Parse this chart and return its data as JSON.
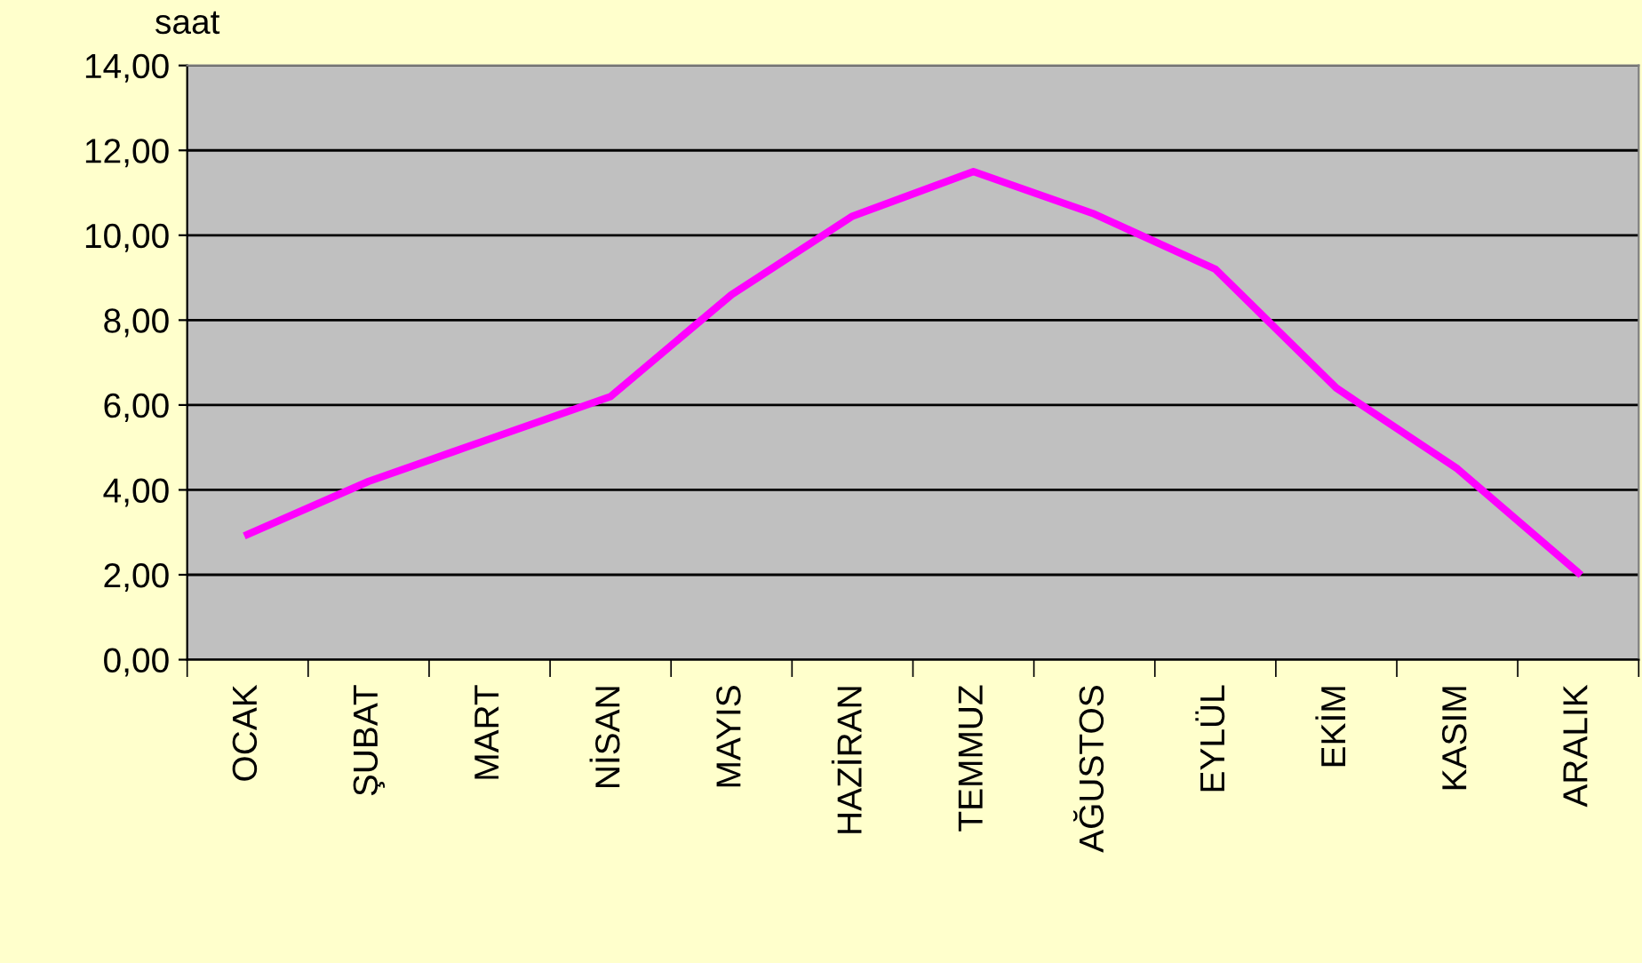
{
  "chart_data": {
    "type": "line",
    "ylabel": "saat",
    "categories": [
      "OCAK",
      "ŞUBAT",
      "MART",
      "NİSAN",
      "MAYIS",
      "HAZİRAN",
      "TEMMUZ",
      "AĞUSTOS",
      "EYLÜL",
      "EKİM",
      "KASIM",
      "ARALIK"
    ],
    "series": [
      {
        "color": "#ff00ff",
        "values": [
          2.95,
          4.2,
          5.2,
          6.2,
          8.6,
          10.45,
          11.5,
          10.5,
          9.2,
          6.4,
          4.5,
          2.05
        ]
      }
    ],
    "ylim": [
      0,
      14
    ],
    "yticks": [
      {
        "value": 0,
        "label": "0,00"
      },
      {
        "value": 2,
        "label": "2,00"
      },
      {
        "value": 4,
        "label": "4,00"
      },
      {
        "value": 6,
        "label": "6,00"
      },
      {
        "value": 8,
        "label": "8,00"
      },
      {
        "value": 10,
        "label": "10,00"
      },
      {
        "value": 12,
        "label": "12,00"
      },
      {
        "value": 14,
        "label": "14,00"
      }
    ],
    "grid": "y",
    "marker": "none",
    "line_style": "solid"
  }
}
